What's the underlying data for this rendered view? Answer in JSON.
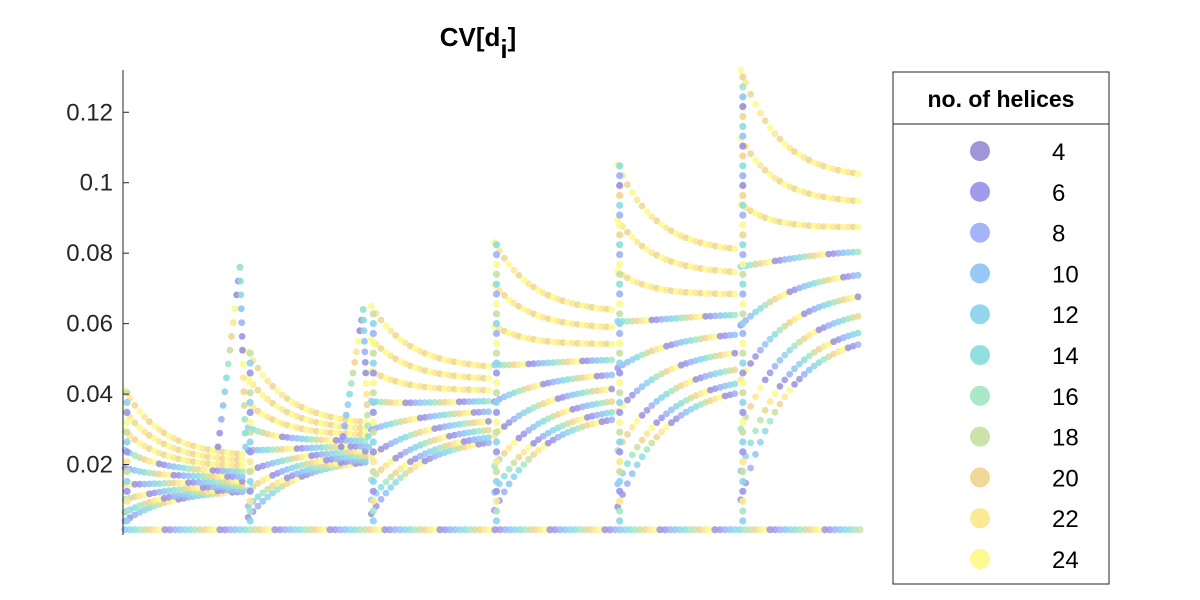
{
  "chart_data": {
    "type": "scatter",
    "title": "CV[d",
    "title_subscript": "i",
    "title_close": "]",
    "xlabel": "",
    "ylabel": "",
    "ylim": [
      0,
      0.132
    ],
    "y_ticks": [
      0.02,
      0.04,
      0.06,
      0.08,
      0.1,
      0.12
    ],
    "y_tick_labels": [
      "0.02",
      "0.04",
      "0.06",
      "0.08",
      "0.1",
      "0.12"
    ],
    "grid": false,
    "legend_position": "right",
    "legend_title": "no. of helices",
    "series": [
      {
        "name": "4",
        "color": "#9b8fd4"
      },
      {
        "name": "6",
        "color": "#9a96ec"
      },
      {
        "name": "8",
        "color": "#a0b0f6"
      },
      {
        "name": "10",
        "color": "#90c6f4"
      },
      {
        "name": "12",
        "color": "#8fd4ee"
      },
      {
        "name": "14",
        "color": "#8cdedc"
      },
      {
        "name": "16",
        "color": "#a6e6c6"
      },
      {
        "name": "18",
        "color": "#c8e0a4"
      },
      {
        "name": "20",
        "color": "#efd690"
      },
      {
        "name": "22",
        "color": "#fbe890"
      },
      {
        "name": "24",
        "color": "#fbfb8c"
      }
    ],
    "groups": [
      {
        "peak": 0.041,
        "floor": 0.022,
        "low": 0.004,
        "tail": 0.013
      },
      {
        "peak": 0.052,
        "floor": 0.031,
        "low": 0.005,
        "tail": 0.022
      },
      {
        "peak": 0.065,
        "floor": 0.047,
        "low": 0.006,
        "tail": 0.028
      },
      {
        "peak": 0.083,
        "floor": 0.063,
        "low": 0.007,
        "tail": 0.035
      },
      {
        "peak": 0.105,
        "floor": 0.08,
        "low": 0.008,
        "tail": 0.043
      },
      {
        "peak": 0.132,
        "floor": 0.101,
        "low": 0.01,
        "tail": 0.058
      }
    ],
    "spikes": [
      {
        "group": 0,
        "top": 0.076
      },
      {
        "group": 1,
        "top": 0.064
      }
    ]
  }
}
